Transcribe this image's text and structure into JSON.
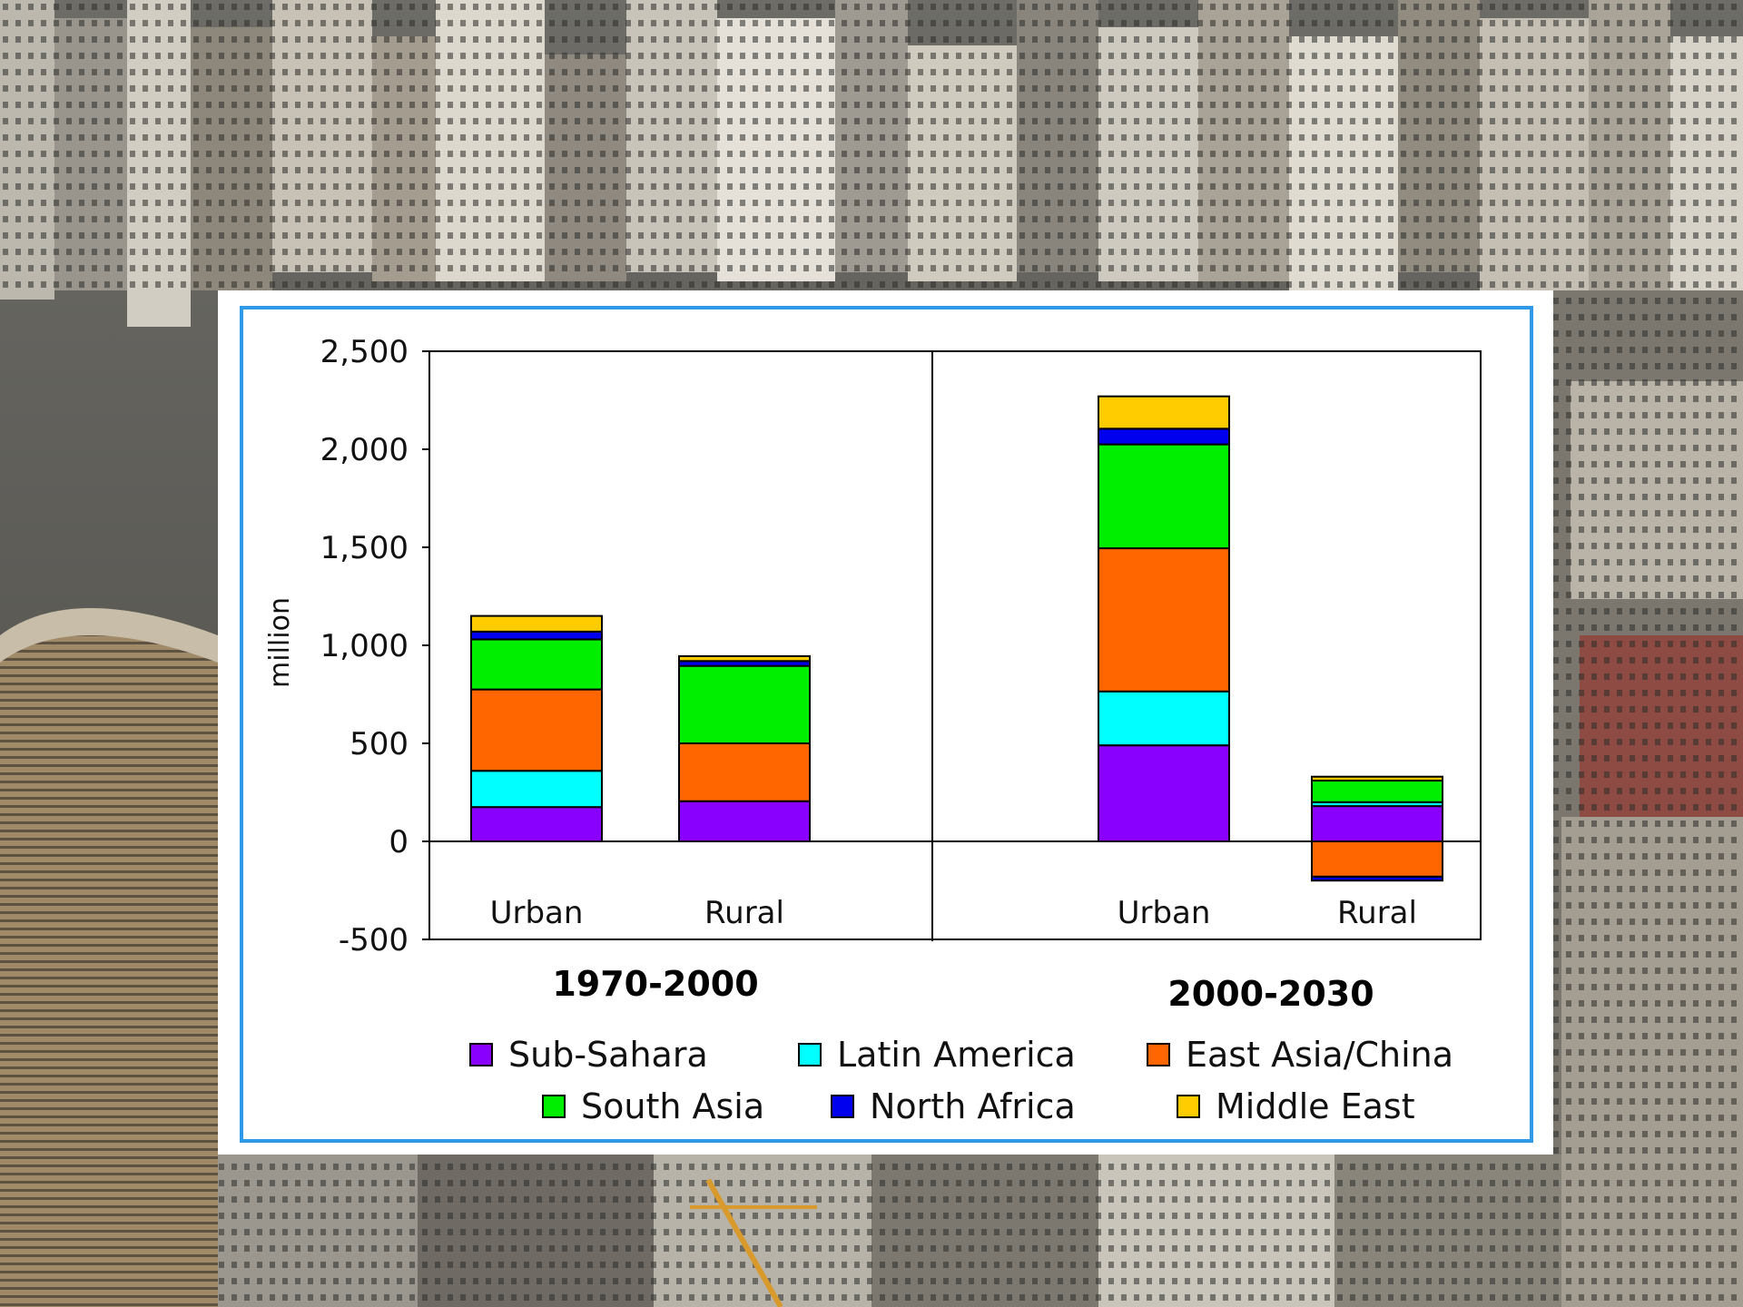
{
  "chart_data": {
    "type": "bar",
    "stacked": true,
    "ylabel": "million",
    "ylim": [
      -500,
      2500
    ],
    "yticks": [
      -500,
      0,
      500,
      1000,
      1500,
      2000,
      2500
    ],
    "ytick_labels": [
      "-500",
      "0",
      "500",
      "1,000",
      "1,500",
      "2,000",
      "2,500"
    ],
    "groups": [
      {
        "period": "1970-2000",
        "categories": [
          "Urban",
          "Rural"
        ]
      },
      {
        "period": "2000-2030",
        "categories": [
          "Urban",
          "Rural"
        ]
      }
    ],
    "categories": [
      "Urban",
      "Rural",
      "Urban",
      "Rural"
    ],
    "series": [
      {
        "name": "Sub-Sahara",
        "color": "#8a00ff",
        "values": [
          175,
          205,
          490,
          180
        ]
      },
      {
        "name": "Latin America",
        "color": "#00ffff",
        "values": [
          185,
          0,
          275,
          20
        ]
      },
      {
        "name": "East Asia/China",
        "color": "#ff6600",
        "values": [
          415,
          295,
          730,
          -180
        ]
      },
      {
        "name": "South Asia",
        "color": "#00ee00",
        "values": [
          255,
          395,
          530,
          110
        ]
      },
      {
        "name": "North Africa",
        "color": "#0000ee",
        "values": [
          40,
          25,
          80,
          -20
        ]
      },
      {
        "name": "Middle East",
        "color": "#ffcc00",
        "values": [
          80,
          25,
          165,
          20
        ]
      }
    ],
    "legend_position": "bottom",
    "grid": false
  }
}
